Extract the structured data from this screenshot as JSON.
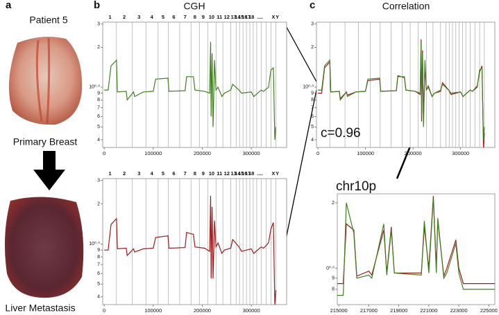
{
  "figure": {
    "panel_labels": [
      "a",
      "b",
      "c"
    ],
    "patient": "Patient 5",
    "primary": "Primary Breast",
    "metastasis": "Liver Metastasis"
  },
  "genome": {
    "chromosome_labels": [
      "1",
      "2",
      "3",
      "4",
      "5",
      "6",
      "7",
      "8",
      "9",
      "10",
      "11",
      "12",
      "13",
      "14",
      "15",
      "16",
      "17",
      "18",
      "....",
      "X",
      "Y"
    ],
    "label_x": [
      12000,
      41000,
      71000,
      97000,
      120000,
      142000,
      165000,
      185000,
      202000,
      219000,
      235000,
      250000,
      264000,
      272000,
      279000,
      286000,
      293000,
      300000,
      318000,
      345000,
      353000
    ],
    "boundaries": [
      25000,
      57000,
      85000,
      110000,
      131000,
      154000,
      177000,
      194000,
      211000,
      228000,
      242000,
      258000,
      269000,
      276000,
      283000,
      290000,
      297000,
      304000,
      311000,
      320000,
      330000,
      340000,
      350000
    ]
  },
  "chart_data": [
    {
      "type": "line",
      "title": "CGH",
      "log_y": true,
      "chromosome_labels": true,
      "chromosome_lines": true,
      "xlim": [
        -3000,
        372000
      ],
      "ylim": [
        0.35,
        3.1
      ],
      "xticks": [
        0,
        100000,
        200000,
        300000
      ],
      "yticks": [
        3,
        2,
        {
          "value": 1,
          "label": "10⁰·⁰"
        },
        {
          "value": 0.9,
          "label": "9"
        },
        {
          "value": 0.8,
          "label": "8"
        },
        {
          "value": 0.7,
          "label": "7"
        },
        {
          "value": 0.6,
          "label": "6"
        },
        {
          "value": 0.5,
          "label": "5"
        },
        {
          "value": 0.4,
          "label": "4"
        }
      ],
      "x": [
        0,
        8000,
        14000,
        25000,
        27000,
        45000,
        47000,
        60000,
        62000,
        80000,
        100000,
        105000,
        130000,
        132000,
        165000,
        168000,
        182000,
        185000,
        205000,
        215000,
        217000,
        218000,
        220000,
        222000,
        225000,
        228000,
        232000,
        240000,
        245000,
        258000,
        262000,
        275000,
        280000,
        300000,
        305000,
        320000,
        325000,
        335000,
        340000,
        345000,
        348000,
        350000
      ],
      "series": [
        {
          "color": "#3f7f1f",
          "values": [
            0.95,
            0.95,
            1.45,
            1.6,
            0.92,
            0.93,
            0.8,
            0.92,
            0.85,
            0.92,
            0.93,
            1.15,
            1.17,
            0.93,
            0.94,
            1.2,
            1.2,
            0.95,
            0.93,
            0.9,
            2.2,
            0.6,
            1.8,
            0.5,
            1.6,
            0.95,
            1.0,
            0.85,
            0.9,
            0.95,
            1.05,
            0.95,
            0.9,
            0.92,
            0.85,
            0.95,
            0.93,
            1.0,
            1.35,
            1.4,
            0.4,
            0.5
          ]
        }
      ]
    },
    {
      "type": "line",
      "log_y": true,
      "chromosome_labels": true,
      "chromosome_lines": true,
      "xlim": [
        -3000,
        372000
      ],
      "ylim": [
        0.35,
        3.1
      ],
      "xticks": [
        0,
        100000,
        200000,
        300000
      ],
      "yticks": [
        3,
        2,
        {
          "value": 1,
          "label": "10⁰·⁰"
        },
        {
          "value": 0.9,
          "label": "9"
        },
        {
          "value": 0.8,
          "label": "8"
        },
        {
          "value": 0.7,
          "label": "7"
        },
        {
          "value": 0.6,
          "label": "6"
        },
        {
          "value": 0.5,
          "label": "5"
        },
        {
          "value": 0.4,
          "label": "4"
        }
      ],
      "x": [
        0,
        8000,
        14000,
        25000,
        27000,
        45000,
        47000,
        60000,
        62000,
        80000,
        100000,
        105000,
        130000,
        132000,
        165000,
        168000,
        182000,
        185000,
        205000,
        215000,
        217000,
        218000,
        220000,
        222000,
        225000,
        228000,
        232000,
        240000,
        245000,
        258000,
        262000,
        275000,
        280000,
        300000,
        305000,
        320000,
        325000,
        335000,
        340000,
        345000,
        348000,
        350000
      ],
      "series": [
        {
          "color": "#9e1b1b",
          "values": [
            0.9,
            0.9,
            1.4,
            1.55,
            0.92,
            0.93,
            0.82,
            0.92,
            0.87,
            0.92,
            0.93,
            1.12,
            1.15,
            0.93,
            0.94,
            1.22,
            1.18,
            0.95,
            0.93,
            0.88,
            2.3,
            0.55,
            1.9,
            0.55,
            1.5,
            0.95,
            1.02,
            0.85,
            0.9,
            0.93,
            1.08,
            0.95,
            0.88,
            0.92,
            0.85,
            0.95,
            0.93,
            1.02,
            1.3,
            1.45,
            0.35,
            0.45
          ]
        }
      ]
    },
    {
      "type": "line",
      "title": "Correlation",
      "annotation": "c=0.96",
      "log_y": true,
      "chromosome_lines": true,
      "xlim": [
        -3000,
        372000
      ],
      "ylim": [
        0.35,
        3.1
      ],
      "xticks": [
        0,
        100000,
        200000,
        300000
      ],
      "yticks": [
        3,
        2,
        {
          "value": 1,
          "label": "10⁰·⁰"
        },
        {
          "value": 0.9,
          "label": "9"
        },
        {
          "value": 0.8,
          "label": "8"
        },
        {
          "value": 0.7,
          "label": "7"
        },
        {
          "value": 0.6,
          "label": "6"
        },
        {
          "value": 0.5,
          "label": "5"
        },
        {
          "value": 0.4,
          "label": "4"
        }
      ],
      "x": [
        0,
        8000,
        14000,
        25000,
        27000,
        45000,
        47000,
        60000,
        62000,
        80000,
        100000,
        105000,
        130000,
        132000,
        165000,
        168000,
        182000,
        185000,
        205000,
        215000,
        217000,
        218000,
        220000,
        222000,
        225000,
        228000,
        232000,
        240000,
        245000,
        258000,
        262000,
        275000,
        280000,
        300000,
        305000,
        320000,
        325000,
        335000,
        340000,
        345000,
        348000,
        350000
      ],
      "series": [
        {
          "color": "#9e1b1b",
          "values": [
            0.9,
            0.9,
            1.4,
            1.55,
            0.92,
            0.93,
            0.82,
            0.92,
            0.87,
            0.92,
            0.93,
            1.12,
            1.15,
            0.93,
            0.94,
            1.22,
            1.18,
            0.95,
            0.93,
            0.88,
            2.3,
            0.55,
            1.9,
            0.55,
            1.5,
            0.95,
            1.02,
            0.85,
            0.9,
            0.93,
            1.08,
            0.95,
            0.88,
            0.92,
            0.85,
            0.95,
            0.93,
            1.02,
            1.3,
            1.45,
            0.35,
            0.45
          ]
        },
        {
          "color": "#3f7f1f",
          "values": [
            0.95,
            0.95,
            1.45,
            1.6,
            0.92,
            0.93,
            0.8,
            0.92,
            0.85,
            0.92,
            0.93,
            1.15,
            1.17,
            0.93,
            0.94,
            1.2,
            1.2,
            0.95,
            0.93,
            0.9,
            2.2,
            0.6,
            1.8,
            0.5,
            1.6,
            0.95,
            1.0,
            0.85,
            0.9,
            0.95,
            1.05,
            0.95,
            0.9,
            0.92,
            0.85,
            0.95,
            0.93,
            1.0,
            1.35,
            1.4,
            0.4,
            0.5
          ]
        }
      ]
    },
    {
      "type": "line",
      "title": "chr10p",
      "log_y": true,
      "xlim": [
        214900,
        225400
      ],
      "ylim": [
        0.68,
        2.2
      ],
      "xticks": [
        215000,
        217000,
        219000,
        221000,
        223000,
        225000
      ],
      "yticks": [
        2,
        {
          "value": 1,
          "label": "0⁰·⁰"
        },
        {
          "value": 0.9,
          "label": "9"
        },
        {
          "value": 0.8,
          "label": "8"
        }
      ],
      "x": [
        214900,
        215300,
        215500,
        216000,
        216200,
        217000,
        217200,
        218000,
        218200,
        218500,
        218700,
        220500,
        220700,
        221000,
        221300,
        221500,
        221600,
        222000,
        222200,
        222800,
        223000,
        223300,
        225400
      ],
      "series": [
        {
          "color": "#9e1b1b",
          "values": [
            0.85,
            0.85,
            1.6,
            1.5,
            0.92,
            0.97,
            0.93,
            1.5,
            0.95,
            1.55,
            0.95,
            0.95,
            1.55,
            1.0,
            2.15,
            1.0,
            1.65,
            0.92,
            1.0,
            1.35,
            1.0,
            0.85,
            0.85
          ]
        },
        {
          "color": "#3f7f1f",
          "values": [
            0.75,
            0.75,
            2.0,
            1.45,
            0.9,
            0.93,
            0.9,
            1.6,
            0.93,
            1.5,
            0.95,
            0.93,
            1.65,
            0.95,
            2.1,
            0.95,
            1.7,
            0.9,
            0.95,
            1.3,
            0.95,
            0.8,
            0.8
          ]
        }
      ]
    }
  ]
}
